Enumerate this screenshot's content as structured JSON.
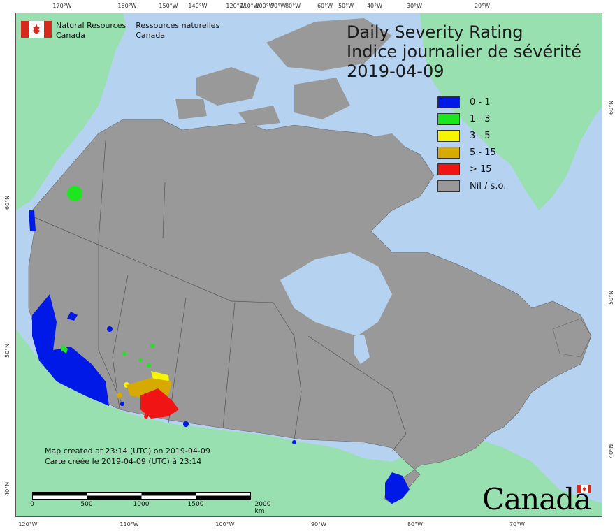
{
  "agency": {
    "name_en_line1": "Natural Resources",
    "name_en_line2": "Canada",
    "name_fr_line1": "Ressources naturelles",
    "name_fr_line2": "Canada"
  },
  "title": {
    "line1": "Daily Severity Rating",
    "line2": "Indice journalier de sévérité",
    "date": "2019-04-09"
  },
  "legend": [
    {
      "label": "0 - 1",
      "color": "#0019e6"
    },
    {
      "label": "1 - 3",
      "color": "#1ee61e"
    },
    {
      "label": "3 - 5",
      "color": "#f5f500"
    },
    {
      "label": "5 - 15",
      "color": "#d6aa00"
    },
    {
      "label": "> 15",
      "color": "#f01414"
    },
    {
      "label": "Nil / s.o.",
      "color": "#999999"
    }
  ],
  "credit": {
    "line_en": "Map created at 23:14 (UTC) on 2019-04-09",
    "line_fr": "Carte créée le 2019-04-09 (UTC) à 23:14"
  },
  "scale": {
    "labels": [
      "0",
      "500",
      "1000",
      "1500",
      "2000  km"
    ]
  },
  "graticule": {
    "top": [
      "170°W",
      "160°W",
      "150°W",
      "140°W",
      "120°W",
      "110°W",
      "100°W",
      "90°W",
      "80°W",
      "60°W",
      "50°W",
      "40°W",
      "30°W",
      "20°W"
    ],
    "bottom": [
      "120°W",
      "110°W",
      "100°W",
      "90°W",
      "80°W",
      "70°W"
    ],
    "left": [
      "60°N",
      "50°N",
      "40°N"
    ],
    "right": [
      "60°N",
      "50°N",
      "40°N"
    ]
  },
  "wordmark": "Canada",
  "colors": {
    "ocean": "#b5d3f0",
    "land_other": "#98e0b0",
    "land_canada_nil": "#999999",
    "flag_red": "#d52b1e"
  }
}
